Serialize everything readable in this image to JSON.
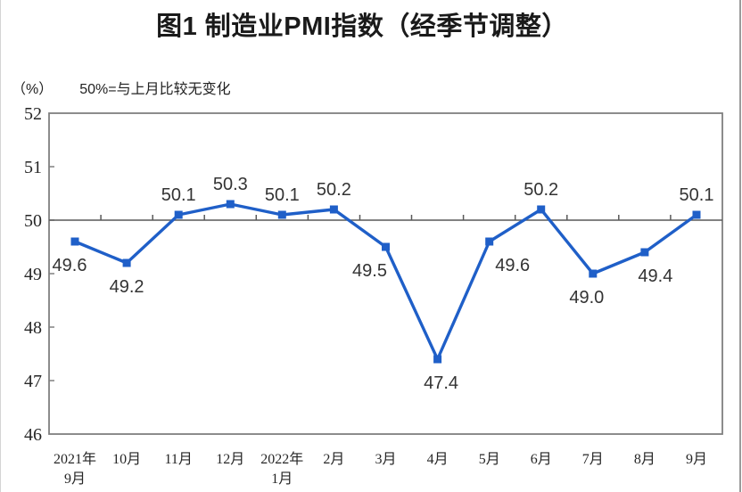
{
  "chart_data": {
    "type": "line",
    "title": "图1 制造业PMI指数（经季节调整）",
    "unit_label": "（%）",
    "note": "50%=与上月比较无变化",
    "categories": [
      "2021年\n9月",
      "10月",
      "11月",
      "12月",
      "2022年\n1月",
      "2月",
      "3月",
      "4月",
      "5月",
      "6月",
      "7月",
      "8月",
      "9月"
    ],
    "values": [
      49.6,
      49.2,
      50.1,
      50.3,
      50.1,
      50.2,
      49.5,
      47.4,
      49.6,
      50.2,
      49.0,
      49.4,
      50.1
    ],
    "ylim": [
      46,
      52
    ],
    "ytick_step": 1,
    "yticks": [
      46,
      47,
      48,
      49,
      50,
      51,
      52
    ],
    "reference_line": 50,
    "grid": "off",
    "legend": "none",
    "marker": "square",
    "line_color": "#1F5FC8",
    "ref_line_color": "#595959",
    "axis_color": "#808080",
    "tick_text_color": "#262626",
    "data_label_color": "#333333",
    "label_dx": [
      -6,
      0,
      0,
      0,
      0,
      0,
      -18,
      4,
      26,
      0,
      -7,
      12,
      0
    ]
  }
}
